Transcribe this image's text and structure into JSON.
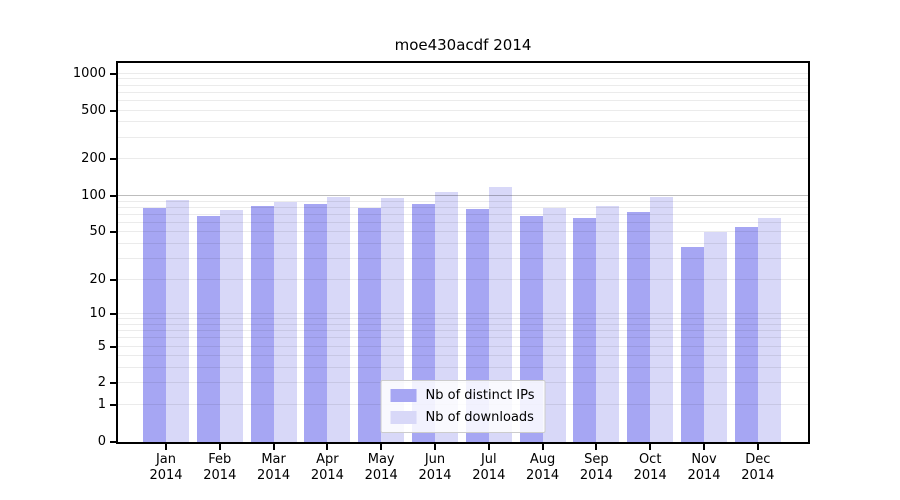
{
  "title": "moe430acdf 2014",
  "chart_data": {
    "type": "bar",
    "title": "moe430acdf 2014",
    "year_label": "2014",
    "categories": [
      "Jan",
      "Feb",
      "Mar",
      "Apr",
      "May",
      "Jun",
      "Jul",
      "Aug",
      "Sep",
      "Oct",
      "Nov",
      "Dec"
    ],
    "series": [
      {
        "name": "Nb of distinct IPs",
        "color": "#a6a6f3",
        "values": [
          80,
          69,
          83,
          86,
          79,
          86,
          78,
          69,
          66,
          74,
          38,
          55
        ]
      },
      {
        "name": "Nb of downloads",
        "color": "#d8d8f8",
        "values": [
          92,
          77,
          89,
          98,
          96,
          108,
          118,
          80,
          82,
          98,
          50,
          66
        ]
      }
    ],
    "yscale": "log1p",
    "ylim": [
      0,
      1220
    ],
    "yticks": [
      0,
      1,
      2,
      5,
      10,
      20,
      50,
      100,
      200,
      500,
      1000
    ],
    "minor_gridlines": [
      3,
      4,
      6,
      7,
      8,
      9,
      30,
      40,
      60,
      70,
      80,
      90,
      300,
      400,
      600,
      700,
      800,
      900
    ],
    "emphasized_gridline": 100,
    "grid": true,
    "legend_position": "lower center"
  },
  "colors": {
    "background": "#ffffff",
    "axis": "#000000",
    "grid": "rgba(0,0,0,0.08)",
    "grid_emphasis": "rgba(0,0,0,0.26)",
    "legend_border": "#cccccc",
    "bar_distinct_ips": "#a6a6f3",
    "bar_downloads": "#d8d8f8"
  }
}
